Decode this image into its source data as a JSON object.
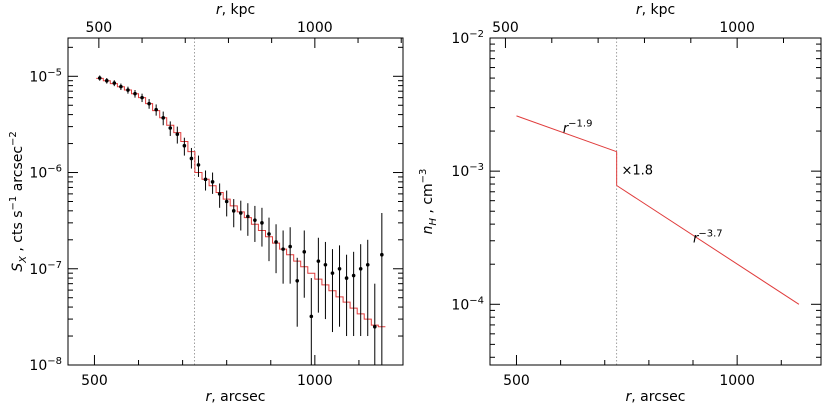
{
  "chart_data": [
    {
      "type": "scatter",
      "x_scale": "linear",
      "y_scale": "log",
      "xlabel_var": "r",
      "xlabel_unit": ", arcsec",
      "x2label_var": "r",
      "x2label_unit": ", kpc",
      "ylabel_var": "S",
      "ylabel_sub": "X",
      "ylabel_unit": " , cts s",
      "ylabel_exp1": "−1",
      "ylabel_mid": " arcsec",
      "ylabel_exp2": "−2",
      "xlim": [
        440,
        1200
      ],
      "ylim": [
        1e-08,
        2.5e-05
      ],
      "x_ticks": [
        {
          "value": 500,
          "label": "500"
        },
        {
          "value": 1000,
          "label": "1000"
        }
      ],
      "x2_ticks": [
        {
          "value": 500,
          "label": "500"
        },
        {
          "value": 1000,
          "label": "1000"
        }
      ],
      "x2_tick_positions_arcsec": [
        510,
        1000
      ],
      "y_ticks": [
        {
          "value": 1e-08,
          "mantissa": "10",
          "exp": "−8"
        },
        {
          "value": 1e-07,
          "mantissa": "10",
          "exp": "−7"
        },
        {
          "value": 1e-06,
          "mantissa": "10",
          "exp": "−6"
        },
        {
          "value": 1e-05,
          "mantissa": "10",
          "exp": "−5"
        }
      ],
      "jump_radius": 727,
      "series": [
        {
          "role": "data-points",
          "color": "#000000",
          "x": [
            512,
            528,
            545,
            560,
            576,
            592,
            608,
            624,
            640,
            656,
            672,
            688,
            704,
            720,
            736,
            752,
            768,
            784,
            800,
            816,
            832,
            848,
            864,
            880,
            896,
            912,
            928,
            944,
            960,
            976,
            992,
            1008,
            1024,
            1040,
            1056,
            1072,
            1088,
            1104,
            1120,
            1136,
            1152
          ],
          "y": [
            9.6e-06,
            9e-06,
            8.5e-06,
            7.8e-06,
            7.2e-06,
            6.6e-06,
            6e-06,
            5.2e-06,
            4.5e-06,
            3.7e-06,
            2.9e-06,
            2.5e-06,
            1.9e-06,
            1.4e-06,
            1.2e-06,
            8.5e-07,
            8e-07,
            6e-07,
            5e-07,
            4e-07,
            3.8e-07,
            3.5e-07,
            3.2e-07,
            3e-07,
            2.3e-07,
            1.9e-07,
            1.6e-07,
            1.7e-07,
            7.5e-08,
            1.5e-07,
            3.2e-08,
            1.2e-07,
            1.1e-07,
            9e-08,
            1e-07,
            8e-08,
            8.5e-08,
            1e-07,
            1.1e-07,
            2.5e-08,
            1.4e-07
          ],
          "y_low": [
            9e-06,
            8.4e-06,
            7.9e-06,
            7.2e-06,
            6.6e-06,
            6e-06,
            5.4e-06,
            4.6e-06,
            3.9e-06,
            3.1e-06,
            2.4e-06,
            2e-06,
            1.5e-06,
            1.1e-06,
            9e-07,
            6.5e-07,
            6e-07,
            4.3e-07,
            3.5e-07,
            2.7e-07,
            2.5e-07,
            2.2e-07,
            1.9e-07,
            1.7e-07,
            1.2e-07,
            9e-08,
            7e-08,
            7e-08,
            2.5e-08,
            5e-08,
            1e-08,
            3.5e-08,
            3e-08,
            2.2e-08,
            2.5e-08,
            2e-08,
            2e-08,
            2e-08,
            2e-08,
            1e-08,
            1e-08
          ],
          "y_high": [
            1.02e-05,
            9.6e-06,
            9.1e-06,
            8.4e-06,
            7.8e-06,
            7.2e-06,
            6.6e-06,
            5.8e-06,
            5.1e-06,
            4.3e-06,
            3.4e-06,
            3e-06,
            2.3e-06,
            1.8e-06,
            1.5e-06,
            1.05e-06,
            1e-06,
            7.7e-07,
            6.5e-07,
            5.3e-07,
            5.1e-07,
            4.8e-07,
            4.5e-07,
            4.3e-07,
            3.4e-07,
            2.9e-07,
            2.5e-07,
            2.7e-07,
            1.3e-07,
            2.5e-07,
            8e-08,
            2.1e-07,
            1.9e-07,
            1.6e-07,
            1.75e-07,
            1.4e-07,
            1.5e-07,
            1.8e-07,
            2e-07,
            7e-08,
            3.8e-07
          ]
        },
        {
          "role": "model-step",
          "color": "#e03c3c",
          "edges": [
            504,
            520,
            536,
            552,
            568,
            584,
            600,
            616,
            632,
            648,
            664,
            680,
            696,
            712,
            728,
            744,
            760,
            776,
            792,
            808,
            824,
            840,
            856,
            872,
            888,
            904,
            920,
            936,
            952,
            968,
            984,
            1000,
            1016,
            1032,
            1048,
            1064,
            1080,
            1096,
            1112,
            1128,
            1144,
            1160
          ],
          "values": [
            9.5e-06,
            9e-06,
            8.4e-06,
            7.8e-06,
            7.2e-06,
            6.6e-06,
            6e-06,
            5.2e-06,
            4.4e-06,
            3.7e-06,
            3.1e-06,
            2.6e-06,
            2.1e-06,
            1.65e-06,
            1e-06,
            8.5e-07,
            7.3e-07,
            6.2e-07,
            5.3e-07,
            4.5e-07,
            3.9e-07,
            3.4e-07,
            2.9e-07,
            2.5e-07,
            2.15e-07,
            1.85e-07,
            1.6e-07,
            1.4e-07,
            1.2e-07,
            1.05e-07,
            9e-08,
            7.8e-08,
            6.8e-08,
            5.9e-08,
            5.1e-08,
            4.5e-08,
            3.9e-08,
            3.4e-08,
            3e-08,
            2.6e-08,
            2.5e-08
          ]
        }
      ]
    },
    {
      "type": "line",
      "x_scale": "linear",
      "y_scale": "log",
      "xlabel_var": "r",
      "xlabel_unit": ", arcsec",
      "x2label_var": "r",
      "x2label_unit": ", kpc",
      "ylabel_var": "n",
      "ylabel_sub": "H",
      "ylabel_unit": " , cm",
      "ylabel_exp": "−3",
      "xlim": [
        440,
        1190
      ],
      "ylim": [
        3.5e-05,
        0.01
      ],
      "x_ticks": [
        {
          "value": 500,
          "label": "500"
        },
        {
          "value": 1000,
          "label": "1000"
        }
      ],
      "x2_ticks": [
        {
          "value": 500,
          "label": "500"
        },
        {
          "value": 1000,
          "label": "1000"
        }
      ],
      "x2_tick_positions_arcsec": [
        475,
        1000
      ],
      "y_ticks": [
        {
          "value": 0.0001,
          "mantissa": "10",
          "exp": "−4"
        },
        {
          "value": 0.001,
          "mantissa": "10",
          "exp": "−3"
        },
        {
          "value": 0.01,
          "mantissa": "10",
          "exp": "−2"
        }
      ],
      "jump_radius": 727,
      "series": [
        {
          "role": "inner-profile",
          "color": "#e03c3c",
          "x": [
            500,
            727
          ],
          "y": [
            0.0026,
            0.0014
          ]
        },
        {
          "role": "jump",
          "color": "#e03c3c",
          "x": [
            727,
            727
          ],
          "y": [
            0.0014,
            0.00078
          ]
        },
        {
          "role": "outer-profile",
          "color": "#e03c3c",
          "x": [
            727,
            1140
          ],
          "y": [
            0.00078,
            0.0001
          ]
        }
      ],
      "annotations": [
        {
          "base": "r",
          "exp": "−1.9",
          "x": 605,
          "y": 0.00195
        },
        {
          "base": "×1.8",
          "exp": "",
          "x": 738,
          "y": 0.00094
        },
        {
          "base": "r",
          "exp": "−3.7",
          "x": 900,
          "y": 0.00029
        }
      ]
    }
  ]
}
